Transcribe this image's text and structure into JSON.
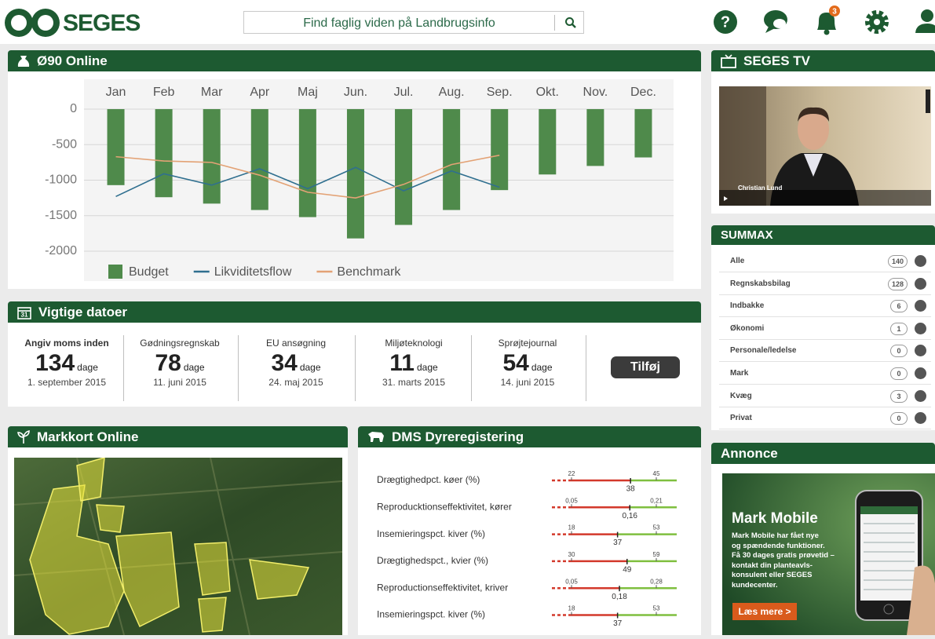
{
  "header": {
    "logo": "SEGES",
    "search_placeholder": "Find faglig viden på Landbrugsinfo",
    "notifications": "3"
  },
  "o90": {
    "title": "Ø90 Online",
    "chart_data": {
      "type": "bar",
      "categories": [
        "Jan",
        "Feb",
        "Mar",
        "Apr",
        "Maj",
        "Jun.",
        "Jul.",
        "Aug.",
        "Sep.",
        "Okt.",
        "Nov.",
        "Dec."
      ],
      "series": [
        {
          "name": "Budget",
          "type": "bar",
          "color": "#4f8a4b",
          "values": [
            -1070,
            -1240,
            -1330,
            -1420,
            -1520,
            -1820,
            -1630,
            -1420,
            -1140,
            -920,
            -800,
            -680
          ]
        },
        {
          "name": "Likviditetsflow",
          "type": "line",
          "color": "#2f6f8f",
          "values": [
            -1230,
            -910,
            -1070,
            -840,
            -1120,
            -820,
            -1150,
            -870,
            -1100,
            null,
            null,
            null
          ]
        },
        {
          "name": "Benchmark",
          "type": "line",
          "color": "#e3a275",
          "values": [
            -670,
            -730,
            -750,
            -930,
            -1170,
            -1250,
            -1060,
            -780,
            -650,
            null,
            null,
            null
          ]
        }
      ],
      "ylim": [
        -2000,
        0
      ],
      "yticks": [
        0,
        -500,
        -1000,
        -1500,
        -2000
      ],
      "grid": true
    }
  },
  "dates": {
    "title": "Vigtige datoer",
    "items": [
      {
        "label": "Angiv moms inden",
        "days": 134,
        "unit": "dage",
        "date": "1. september 2015"
      },
      {
        "label": "Gødningsregnskab",
        "days": 78,
        "unit": "dage",
        "date": "11. juni 2015"
      },
      {
        "label": "EU ansøgning",
        "days": 34,
        "unit": "dage",
        "date": "24. maj 2015"
      },
      {
        "label": "Miljøteknologi",
        "days": 11,
        "unit": "dage",
        "date": "31. marts 2015"
      },
      {
        "label": "Sprøjtejournal",
        "days": 54,
        "unit": "dage",
        "date": "14. juni 2015"
      }
    ],
    "button": "Tilføj"
  },
  "markkort": {
    "title": "Markkort Online"
  },
  "dms": {
    "title": "DMS Dyreregistering",
    "rows": [
      {
        "label": "Drægtighedpct. køer (%)",
        "low": 22,
        "high": 45,
        "current": 38
      },
      {
        "label": "Reproducktionseffektivitet, kører",
        "low": {
          "value": 0.05,
          "label": "0,05"
        },
        "high": {
          "value": 0.21,
          "label": "0,21"
        },
        "current": {
          "value": 0.16,
          "label": "0,16"
        }
      },
      {
        "label": "Insemieringspct. kiver (%)",
        "low": 18,
        "high": 53,
        "current": 37
      },
      {
        "label": "Drægtighedspct., kvier (%)",
        "low": 30,
        "high": 59,
        "current": 49
      },
      {
        "label": "Reproductionseffektivitet, kriver",
        "low": {
          "value": 0.05,
          "label": "0,05"
        },
        "high": {
          "value": 0.28,
          "label": "0,28"
        },
        "current": {
          "value": 0.18,
          "label": "0,18"
        }
      },
      {
        "label": "Insemieringspct. kiver (%)",
        "low": 18,
        "high": 53,
        "current": 37
      }
    ]
  },
  "tv": {
    "title": "SEGES TV",
    "caption": "Christian Lund"
  },
  "summax": {
    "title": "SUMMAX",
    "rows": [
      {
        "label": "Alle",
        "count": 140
      },
      {
        "label": "Regnskabsbilag",
        "count": 128
      },
      {
        "label": "Indbakke",
        "count": 6
      },
      {
        "label": "Økonomi",
        "count": 1
      },
      {
        "label": "Personale/ledelse",
        "count": 0
      },
      {
        "label": "Mark",
        "count": 0
      },
      {
        "label": "Kvæg",
        "count": 3
      },
      {
        "label": "Privat",
        "count": 0
      }
    ]
  },
  "ad": {
    "title": "Annonce",
    "headline": "Mark Mobile",
    "lines": [
      "Mark Mobile har fået nye",
      "og spændende funktioner.",
      "Få 30 dages gratis prøvetid –",
      "kontakt din planteavls-",
      "konsulent eller SEGES",
      "kundecenter."
    ],
    "button": "Læs mere >"
  }
}
